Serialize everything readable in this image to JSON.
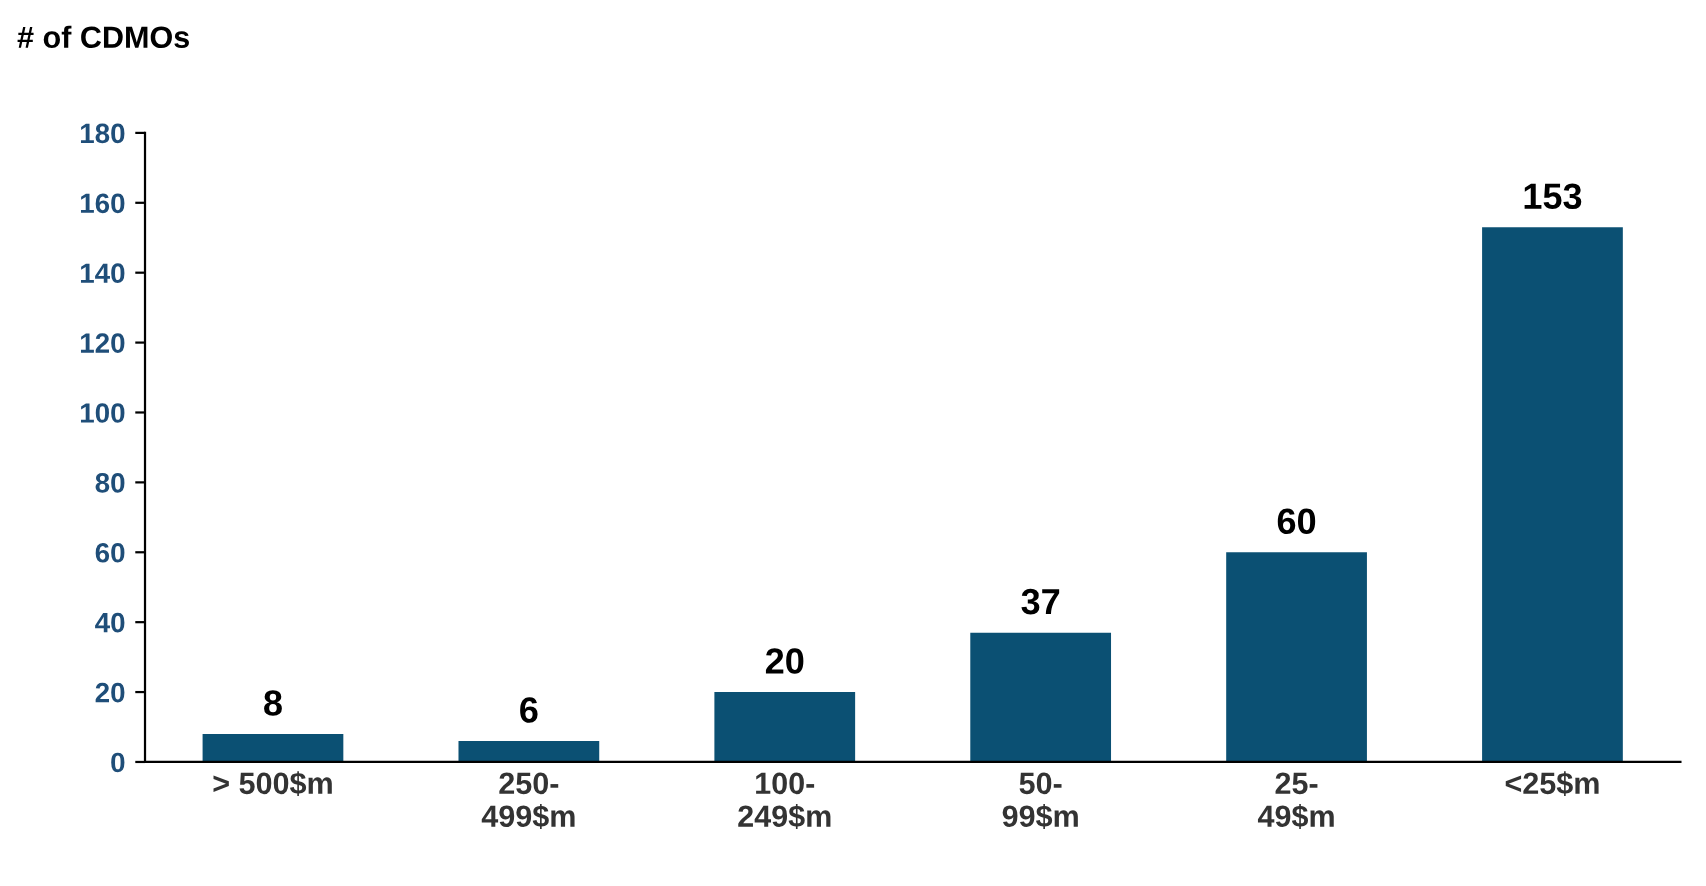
{
  "chart_data": {
    "type": "bar",
    "ylabel": "# of CDMOs",
    "categories": [
      "> 500$m",
      "250-\n499$m",
      "100-\n249$m",
      "50-\n99$m",
      "25-\n49$m",
      "<25$m"
    ],
    "values": [
      8,
      6,
      20,
      37,
      60,
      153
    ],
    "color": "#0b5073",
    "ylim": [
      0,
      180
    ],
    "yticks": [
      0,
      20,
      40,
      60,
      80,
      100,
      120,
      140,
      160,
      180
    ],
    "data_labels": true,
    "grid": false,
    "legend": false
  }
}
